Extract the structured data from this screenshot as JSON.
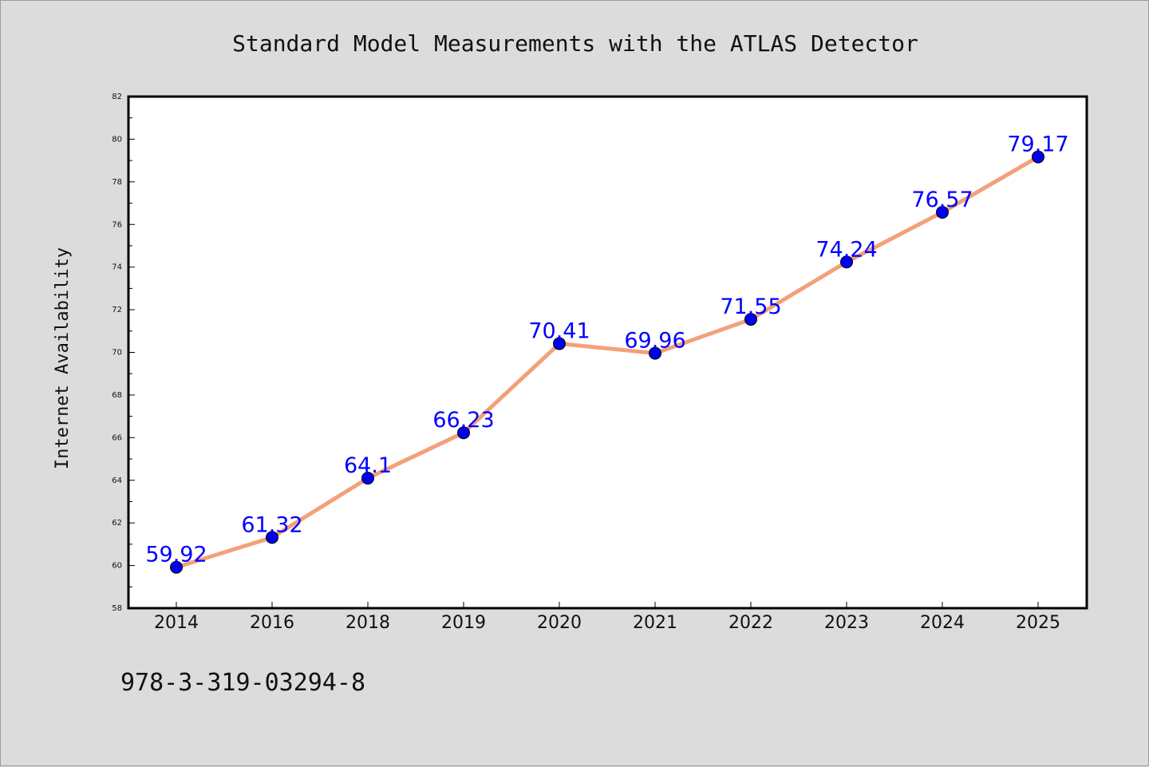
{
  "chart_data": {
    "type": "line",
    "title": "Standard Model Measurements with the ATLAS Detector",
    "xlabel": "",
    "ylabel": "Internet Availability",
    "categories": [
      "2014",
      "2016",
      "2018",
      "2019",
      "2020",
      "2021",
      "2022",
      "2023",
      "2024",
      "2025"
    ],
    "series": [
      {
        "values": [
          59.92,
          61.32,
          64.1,
          66.23,
          70.41,
          69.96,
          71.55,
          74.24,
          76.57,
          79.17
        ],
        "labels": [
          "59.92",
          "61.32",
          "64.1",
          "66.23",
          "70.41",
          "69.96",
          "71.55",
          "74.24",
          "76.57",
          "79.17"
        ]
      }
    ],
    "ylim": [
      58,
      82
    ],
    "yticks": [
      "58",
      "60",
      "62",
      "64",
      "66",
      "68",
      "70",
      "72",
      "74",
      "76",
      "78",
      "80",
      "82"
    ],
    "grid": false,
    "colors": {
      "line": "#f4a07a",
      "marker": "#0000ee",
      "data_label": "#0000ff",
      "plot_background": "#ffffff",
      "figure_background": "#dcdcdc"
    }
  },
  "footer": {
    "isbn": "978-3-319-03294-8"
  }
}
